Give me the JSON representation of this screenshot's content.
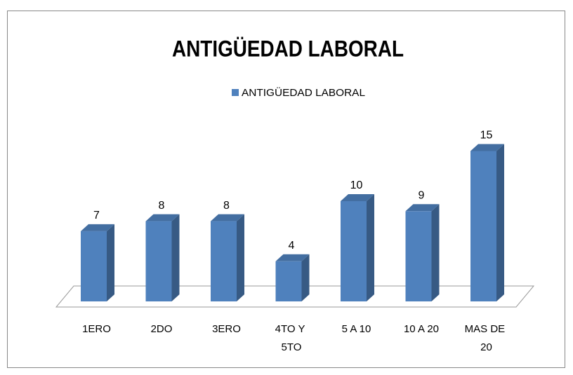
{
  "chart_data": {
    "type": "bar3d",
    "title": "ANTIGÜEDAD LABORAL",
    "categories": [
      "1ERO",
      "2DO",
      "3ERO",
      "4TO Y 5TO",
      "5 A 10",
      "10 A 20",
      "MAS DE 20"
    ],
    "series": [
      {
        "name": "ANTIGÜEDAD LABORAL",
        "color": "#4f81bd",
        "values": [
          7,
          8,
          8,
          4,
          10,
          9,
          15
        ]
      }
    ],
    "legend": "top"
  }
}
